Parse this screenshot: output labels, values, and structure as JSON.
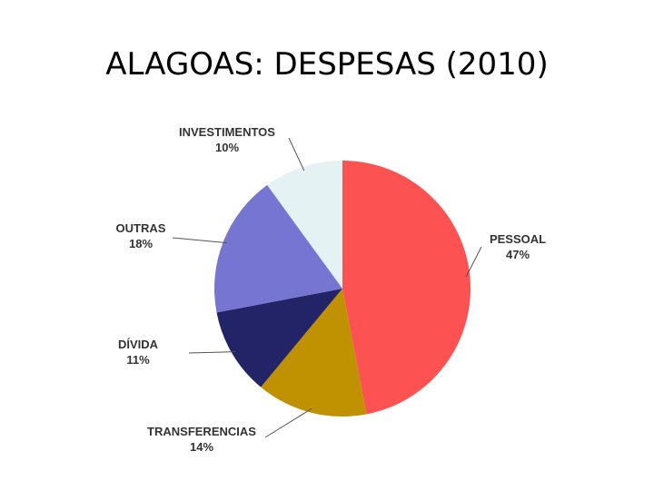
{
  "chart_data": {
    "type": "pie",
    "title": "ALAGOAS: DESPESAS (2010)",
    "categories": [
      "PESSOAL",
      "TRANSFERENCIAS",
      "DÍVIDA",
      "OUTRAS",
      "INVESTIMENTOS"
    ],
    "values": [
      47,
      14,
      11,
      18,
      10
    ],
    "value_labels": [
      "47%",
      "14%",
      "11%",
      "18%",
      "10%"
    ],
    "colors": [
      "#fd5252",
      "#c09100",
      "#232367",
      "#7676d2",
      "#e4f2f4"
    ]
  }
}
